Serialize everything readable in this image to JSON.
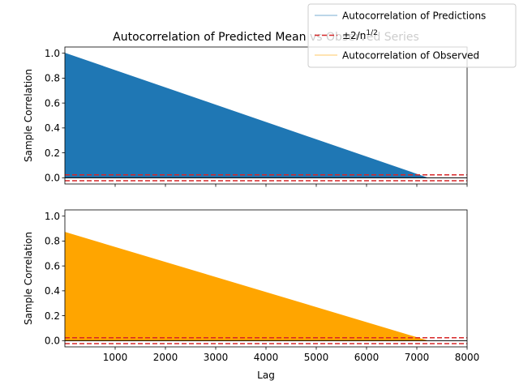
{
  "chart_data": [
    {
      "type": "area",
      "title": "Autocorrelation of Predicted Mean vs Observed Series",
      "xlabel": "",
      "ylabel": "Sample Correlation",
      "xlim": [
        0,
        8000
      ],
      "ylim": [
        -0.05,
        1.05
      ],
      "x_ticks": [
        1000,
        2000,
        3000,
        4000,
        5000,
        6000,
        7000,
        8000
      ],
      "x_tick_labels_shown": false,
      "y_ticks": [
        0.0,
        0.2,
        0.4,
        0.6,
        0.8,
        1.0
      ],
      "y_tick_labels": [
        "0.0",
        "0.2",
        "0.4",
        "0.6",
        "0.8",
        "1.0"
      ],
      "series": [
        {
          "name": "Autocorrelation of Predictions",
          "color": "#1f77b4",
          "x": [
            0,
            7200
          ],
          "y": [
            1.0,
            0.0
          ]
        }
      ],
      "reference_lines": {
        "name": "±2/n^{1/2}",
        "color": "#d62728",
        "style": "dashed",
        "values": [
          0.0236,
          -0.0236
        ]
      },
      "zero_line": {
        "value": 0.0,
        "color": "#000000"
      },
      "grid": false
    },
    {
      "type": "area",
      "title": "",
      "xlabel": "Lag",
      "ylabel": "Sample Correlation",
      "xlim": [
        0,
        8000
      ],
      "ylim": [
        -0.05,
        1.05
      ],
      "x_ticks": [
        1000,
        2000,
        3000,
        4000,
        5000,
        6000,
        7000,
        8000
      ],
      "x_tick_labels": [
        "1000",
        "2000",
        "3000",
        "4000",
        "5000",
        "6000",
        "7000",
        "8000"
      ],
      "y_ticks": [
        0.0,
        0.2,
        0.4,
        0.6,
        0.8,
        1.0
      ],
      "y_tick_labels": [
        "0.0",
        "0.2",
        "0.4",
        "0.6",
        "0.8",
        "1.0"
      ],
      "series": [
        {
          "name": "Autocorrelation of Observed",
          "color": "#ffa500",
          "x": [
            0,
            7200
          ],
          "y": [
            0.87,
            0.0
          ]
        }
      ],
      "reference_lines": {
        "name": "±2/n^{1/2}",
        "color": "#d62728",
        "style": "dashed",
        "values": [
          0.0236,
          -0.0236
        ]
      },
      "zero_line": {
        "value": 0.0,
        "color": "#000000"
      },
      "grid": false
    }
  ],
  "legend": {
    "placement": "top-right",
    "entries": [
      {
        "label": "Autocorrelation of Predictions",
        "color": "#1f77b4",
        "style": "solid"
      },
      {
        "label": "±2/n",
        "superscript": "1/2",
        "color": "#d62728",
        "style": "dashed"
      },
      {
        "label": "Autocorrelation of Observed",
        "color": "#ffa500",
        "style": "solid"
      }
    ]
  }
}
